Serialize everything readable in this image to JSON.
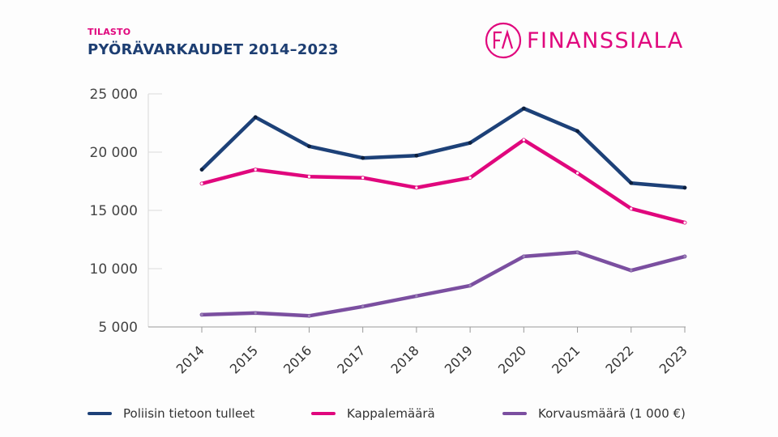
{
  "header": {
    "kicker": "TILASTO",
    "title": "PYÖRÄVARKAUDET 2014–2023"
  },
  "logo": {
    "mark": "FA",
    "text": "FINANSSIALA",
    "color": "#e0077d"
  },
  "chart_data": {
    "type": "line",
    "title": "PYÖRÄVARKAUDET 2014–2023",
    "xlabel": "",
    "ylabel": "",
    "ylim": [
      5000,
      25000
    ],
    "yticks": [
      5000,
      10000,
      15000,
      20000,
      25000
    ],
    "ytick_labels": [
      "5 000",
      "10 000",
      "15 000",
      "20 000",
      "25 000"
    ],
    "categories": [
      "2014",
      "2015",
      "2016",
      "2017",
      "2018",
      "2019",
      "2020",
      "2021",
      "2022",
      "2023"
    ],
    "grid": false,
    "legend_position": "bottom",
    "series": [
      {
        "name": "Poliisin tietoon tulleet",
        "color": "#1d4178",
        "values": [
          18500,
          23000,
          20500,
          19500,
          19700,
          20800,
          23750,
          21800,
          17350,
          16950
        ]
      },
      {
        "name": "Kappalemäärä",
        "color": "#e0077d",
        "values": [
          17300,
          18500,
          17900,
          17800,
          16950,
          17800,
          21050,
          18200,
          15150,
          13950
        ]
      },
      {
        "name": "Korvausmäärä (1 000 €)",
        "color": "#7b4fa0",
        "values": [
          6050,
          6200,
          5950,
          6750,
          7650,
          8550,
          11050,
          11400,
          9850,
          11050
        ]
      }
    ]
  }
}
